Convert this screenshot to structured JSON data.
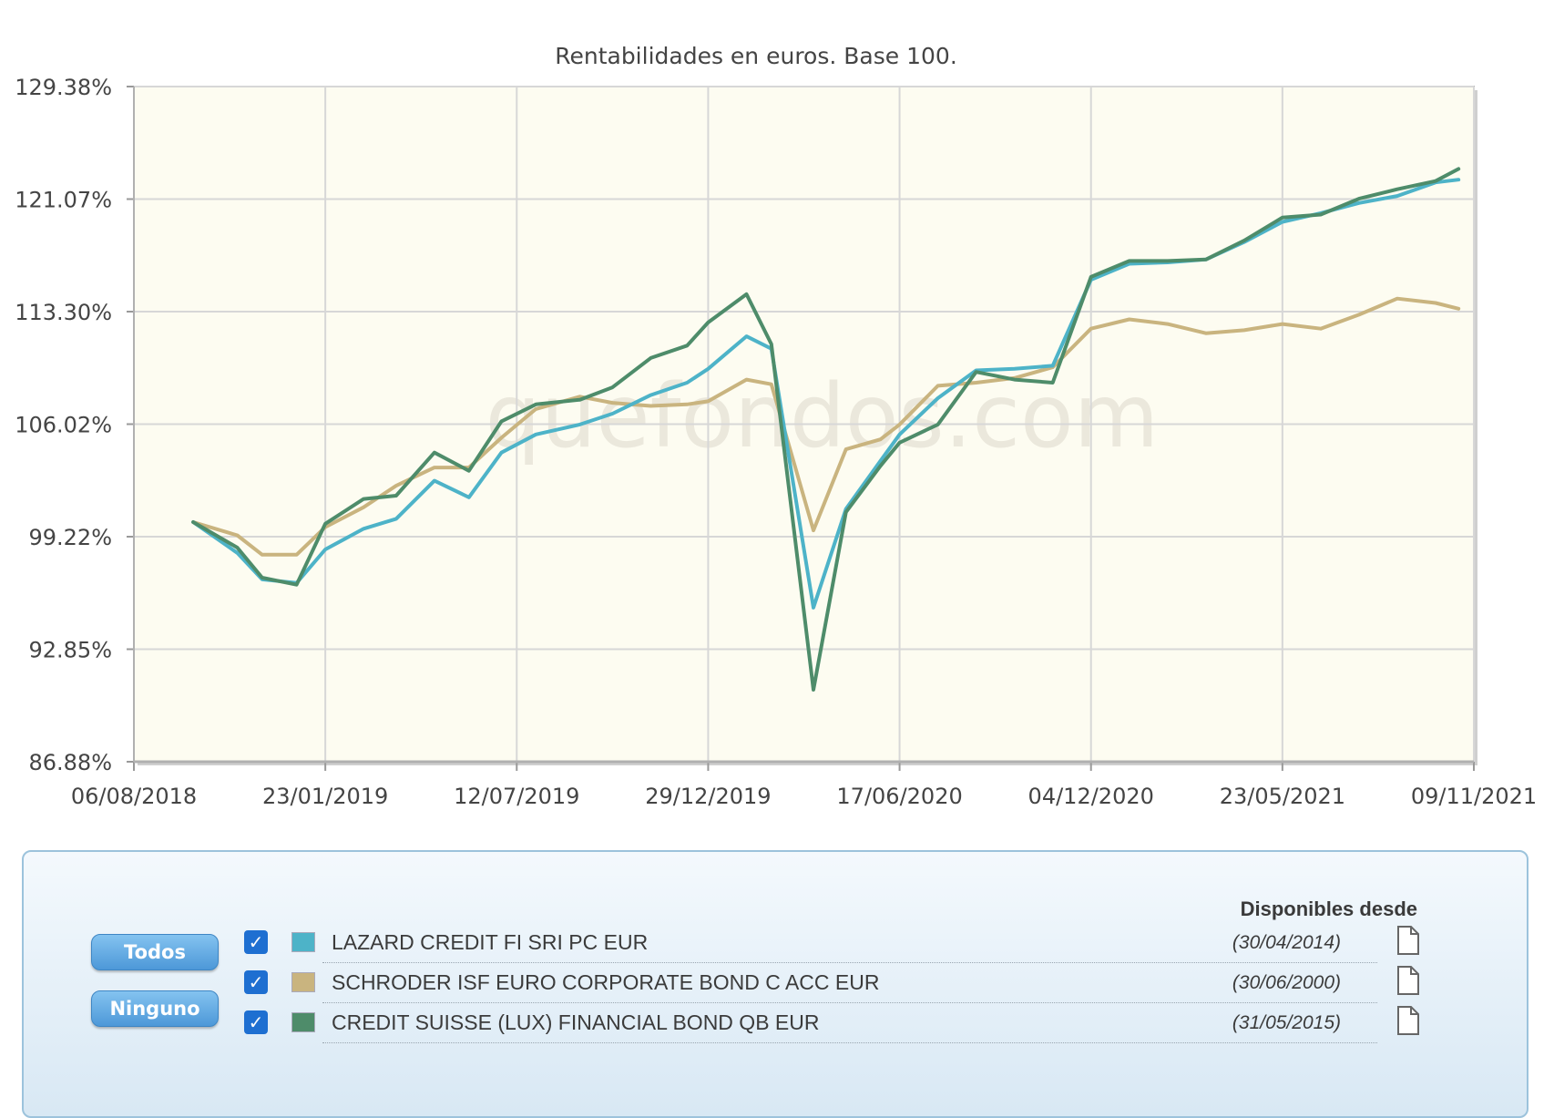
{
  "chart_data": {
    "type": "line",
    "title": "Rentabilidades en euros. Base 100.",
    "xlabel": "",
    "ylabel": "",
    "watermark": "quefondos.com",
    "x_tick_labels": [
      "06/08/2018",
      "23/01/2019",
      "12/07/2019",
      "29/12/2019",
      "17/06/2020",
      "04/12/2020",
      "23/05/2021",
      "09/11/2021"
    ],
    "y_tick_labels": [
      "129.38%",
      "121.07%",
      "113.30%",
      "106.02%",
      "99.22%",
      "92.85%",
      "86.88%"
    ],
    "y_tick_values": [
      129.38,
      121.07,
      113.3,
      106.02,
      99.22,
      92.85,
      86.88
    ],
    "xlim_index": [
      0,
      7
    ],
    "grid": true,
    "series": [
      {
        "name": "LAZARD CREDIT FI SRI PC EUR",
        "color": "#4db3c8",
        "points": [
          [
            0.31,
            100.1
          ],
          [
            0.54,
            98.3
          ],
          [
            0.67,
            96.8
          ],
          [
            0.85,
            96.6
          ],
          [
            1.0,
            98.5
          ],
          [
            1.2,
            99.7
          ],
          [
            1.37,
            100.3
          ],
          [
            1.57,
            102.6
          ],
          [
            1.75,
            101.6
          ],
          [
            1.92,
            104.3
          ],
          [
            2.1,
            105.4
          ],
          [
            2.33,
            106.0
          ],
          [
            2.5,
            106.7
          ],
          [
            2.7,
            107.9
          ],
          [
            2.89,
            108.7
          ],
          [
            3.0,
            109.6
          ],
          [
            3.2,
            111.7
          ],
          [
            3.33,
            110.9
          ],
          [
            3.55,
            95.2
          ],
          [
            3.72,
            100.9
          ],
          [
            3.9,
            103.8
          ],
          [
            4.0,
            105.4
          ],
          [
            4.2,
            107.7
          ],
          [
            4.4,
            109.5
          ],
          [
            4.6,
            109.6
          ],
          [
            4.8,
            109.8
          ],
          [
            5.0,
            115.5
          ],
          [
            5.2,
            116.6
          ],
          [
            5.4,
            116.7
          ],
          [
            5.6,
            116.9
          ],
          [
            5.8,
            118.1
          ],
          [
            6.0,
            119.5
          ],
          [
            6.2,
            120.1
          ],
          [
            6.4,
            120.8
          ],
          [
            6.6,
            121.3
          ],
          [
            6.8,
            122.3
          ],
          [
            6.92,
            122.5
          ]
        ]
      },
      {
        "name": "SCHRODER ISF EURO CORPORATE BOND C ACC EUR",
        "color": "#c9b47f",
        "points": [
          [
            0.31,
            100.1
          ],
          [
            0.54,
            99.3
          ],
          [
            0.67,
            98.2
          ],
          [
            0.85,
            98.2
          ],
          [
            1.0,
            99.8
          ],
          [
            1.2,
            101.0
          ],
          [
            1.37,
            102.3
          ],
          [
            1.57,
            103.4
          ],
          [
            1.75,
            103.4
          ],
          [
            1.92,
            105.2
          ],
          [
            2.1,
            107.0
          ],
          [
            2.33,
            107.8
          ],
          [
            2.5,
            107.4
          ],
          [
            2.7,
            107.2
          ],
          [
            2.89,
            107.3
          ],
          [
            3.0,
            107.5
          ],
          [
            3.2,
            108.9
          ],
          [
            3.33,
            108.6
          ],
          [
            3.55,
            99.6
          ],
          [
            3.72,
            104.5
          ],
          [
            3.9,
            105.1
          ],
          [
            4.0,
            106.0
          ],
          [
            4.2,
            108.5
          ],
          [
            4.4,
            108.7
          ],
          [
            4.6,
            109.0
          ],
          [
            4.8,
            109.7
          ],
          [
            5.0,
            112.2
          ],
          [
            5.2,
            112.8
          ],
          [
            5.4,
            112.5
          ],
          [
            5.6,
            111.9
          ],
          [
            5.8,
            112.1
          ],
          [
            6.0,
            112.5
          ],
          [
            6.2,
            112.2
          ],
          [
            6.4,
            113.1
          ],
          [
            6.6,
            114.2
          ],
          [
            6.8,
            113.9
          ],
          [
            6.92,
            113.5
          ]
        ]
      },
      {
        "name": "CREDIT SUISSE (LUX) FINANCIAL BOND QB EUR",
        "color": "#4e8c6a",
        "points": [
          [
            0.31,
            100.1
          ],
          [
            0.54,
            98.6
          ],
          [
            0.67,
            96.9
          ],
          [
            0.85,
            96.5
          ],
          [
            1.0,
            100.0
          ],
          [
            1.2,
            101.5
          ],
          [
            1.37,
            101.7
          ],
          [
            1.57,
            104.3
          ],
          [
            1.75,
            103.2
          ],
          [
            1.92,
            106.2
          ],
          [
            2.1,
            107.3
          ],
          [
            2.33,
            107.6
          ],
          [
            2.5,
            108.4
          ],
          [
            2.7,
            110.3
          ],
          [
            2.89,
            111.1
          ],
          [
            3.0,
            112.6
          ],
          [
            3.2,
            114.5
          ],
          [
            3.33,
            111.2
          ],
          [
            3.55,
            90.7
          ],
          [
            3.72,
            100.7
          ],
          [
            3.9,
            103.5
          ],
          [
            4.0,
            104.9
          ],
          [
            4.2,
            106.0
          ],
          [
            4.4,
            109.4
          ],
          [
            4.6,
            108.9
          ],
          [
            4.8,
            108.7
          ],
          [
            5.0,
            115.7
          ],
          [
            5.2,
            116.8
          ],
          [
            5.4,
            116.8
          ],
          [
            5.6,
            116.9
          ],
          [
            5.8,
            118.2
          ],
          [
            6.0,
            119.8
          ],
          [
            6.2,
            120.0
          ],
          [
            6.4,
            121.1
          ],
          [
            6.6,
            121.8
          ],
          [
            6.8,
            122.4
          ],
          [
            6.92,
            123.3
          ]
        ]
      }
    ]
  },
  "legend": {
    "todos_label": "Todos",
    "ninguno_label": "Ninguno",
    "header": "Disponibles desde",
    "rows": [
      {
        "name": "LAZARD CREDIT FI SRI PC EUR",
        "date": "(30/04/2014)",
        "color": "#4db3c8"
      },
      {
        "name": "SCHRODER ISF EURO CORPORATE BOND C ACC EUR",
        "date": "(30/06/2000)",
        "color": "#c9b47f"
      },
      {
        "name": "CREDIT SUISSE (LUX) FINANCIAL BOND QB EUR",
        "date": "(31/05/2015)",
        "color": "#4e8c6a"
      }
    ]
  }
}
